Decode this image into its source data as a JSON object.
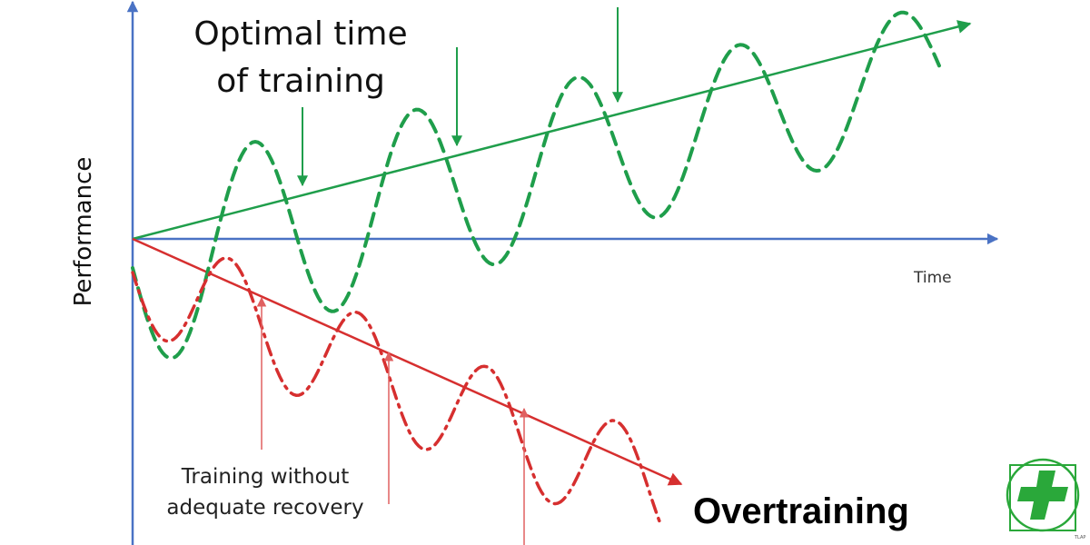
{
  "labels": {
    "optimal_line1": "Optimal time",
    "optimal_line2": "of training",
    "time_axis": "Time",
    "performance_axis": "Performance",
    "no_recovery_line1": "Training without",
    "no_recovery_line2": "adequate recovery",
    "overtraining": "Overtraining"
  },
  "logo": {
    "text": "TLAP",
    "icon": "green-cross-icon"
  },
  "colors": {
    "axis": "#4a72c4",
    "optimal": "#1f9e4b",
    "overtraining": "#d62f2f",
    "red_arrow": "#e06060",
    "logo_green": "#2aa83a"
  }
}
